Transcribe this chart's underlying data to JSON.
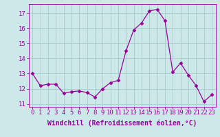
{
  "x": [
    0,
    1,
    2,
    3,
    4,
    5,
    6,
    7,
    8,
    9,
    10,
    11,
    12,
    13,
    14,
    15,
    16,
    17,
    18,
    19,
    20,
    21,
    22,
    23
  ],
  "y": [
    13.0,
    12.2,
    12.3,
    12.3,
    11.7,
    11.8,
    11.85,
    11.75,
    11.45,
    12.0,
    12.4,
    12.55,
    14.5,
    15.9,
    16.35,
    17.15,
    17.25,
    16.5,
    13.1,
    13.7,
    12.9,
    12.2,
    11.15,
    11.6
  ],
  "line_color": "#990099",
  "marker": "D",
  "marker_size": 2.5,
  "bg_color": "#cce8e8",
  "grid_color": "#aacccc",
  "xlabel": "Windchill (Refroidissement éolien,°C)",
  "ylim": [
    10.8,
    17.6
  ],
  "yticks": [
    11,
    12,
    13,
    14,
    15,
    16,
    17
  ],
  "xticks": [
    0,
    1,
    2,
    3,
    4,
    5,
    6,
    7,
    8,
    9,
    10,
    11,
    12,
    13,
    14,
    15,
    16,
    17,
    18,
    19,
    20,
    21,
    22,
    23
  ],
  "tick_label_fontsize": 6.5,
  "xlabel_fontsize": 7.0
}
